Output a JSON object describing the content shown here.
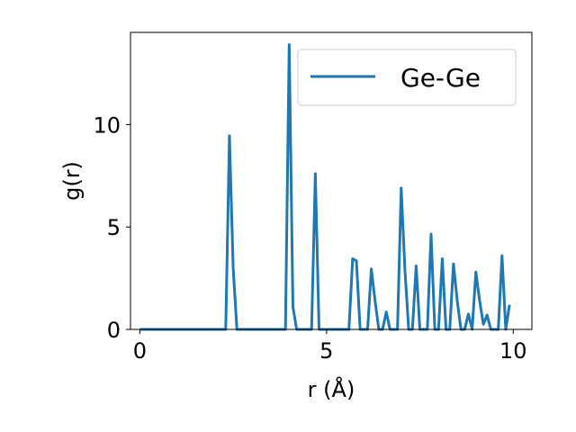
{
  "chart_data": {
    "type": "line",
    "xlabel": "r (Å)",
    "ylabel": "g(r)",
    "xlim": [
      -0.25,
      10.5
    ],
    "ylim": [
      0,
      14.5
    ],
    "xticks": [
      0,
      5,
      10
    ],
    "yticks": [
      0,
      5,
      10
    ],
    "grid": false,
    "legend_placement": "top-right",
    "series": [
      {
        "name": "Ge-Ge",
        "color": "#1f77b4",
        "x": [
          0.0,
          0.1,
          0.2,
          0.3,
          0.4,
          0.5,
          0.6,
          0.7,
          0.8,
          0.9,
          1.0,
          1.1,
          1.2,
          1.3,
          1.4,
          1.5,
          1.6,
          1.7,
          1.8,
          1.9,
          2.0,
          2.1,
          2.2,
          2.3,
          2.4,
          2.5,
          2.6,
          2.7,
          2.8,
          2.9,
          3.0,
          3.1,
          3.2,
          3.3,
          3.4,
          3.5,
          3.6,
          3.7,
          3.8,
          3.9,
          4.0,
          4.1,
          4.2,
          4.3,
          4.4,
          4.5,
          4.6,
          4.7,
          4.8,
          4.9,
          5.0,
          5.1,
          5.2,
          5.3,
          5.4,
          5.5,
          5.6,
          5.7,
          5.8,
          5.9,
          6.0,
          6.1,
          6.2,
          6.3,
          6.4,
          6.5,
          6.6,
          6.7,
          6.8,
          6.9,
          7.0,
          7.1,
          7.2,
          7.3,
          7.4,
          7.5,
          7.6,
          7.7,
          7.8,
          7.9,
          8.0,
          8.1,
          8.2,
          8.3,
          8.4,
          8.5,
          8.6,
          8.7,
          8.8,
          8.9,
          9.0,
          9.1,
          9.2,
          9.3,
          9.4,
          9.5,
          9.6,
          9.7,
          9.8,
          9.9
        ],
        "y": [
          0,
          0,
          0,
          0,
          0,
          0,
          0,
          0,
          0,
          0,
          0,
          0,
          0,
          0,
          0,
          0,
          0,
          0,
          0,
          0,
          0,
          0,
          0,
          0,
          9.45,
          3.0,
          0,
          0,
          0,
          0,
          0,
          0,
          0,
          0,
          0,
          0,
          0,
          0,
          0,
          0,
          13.9,
          1.1,
          0,
          0,
          0,
          0,
          0,
          7.6,
          0,
          0,
          0,
          0,
          0,
          0,
          0,
          0,
          0,
          3.45,
          3.35,
          0,
          0,
          0,
          2.95,
          1.4,
          0,
          0,
          0.85,
          0,
          0,
          0,
          6.9,
          2.9,
          0,
          0,
          3.1,
          0,
          0,
          0,
          4.65,
          0,
          0,
          3.45,
          0,
          0,
          3.2,
          1.4,
          0,
          0,
          0.75,
          0,
          2.8,
          1.4,
          0.25,
          0.7,
          0,
          0,
          0,
          3.6,
          0,
          1.2
        ]
      }
    ]
  }
}
